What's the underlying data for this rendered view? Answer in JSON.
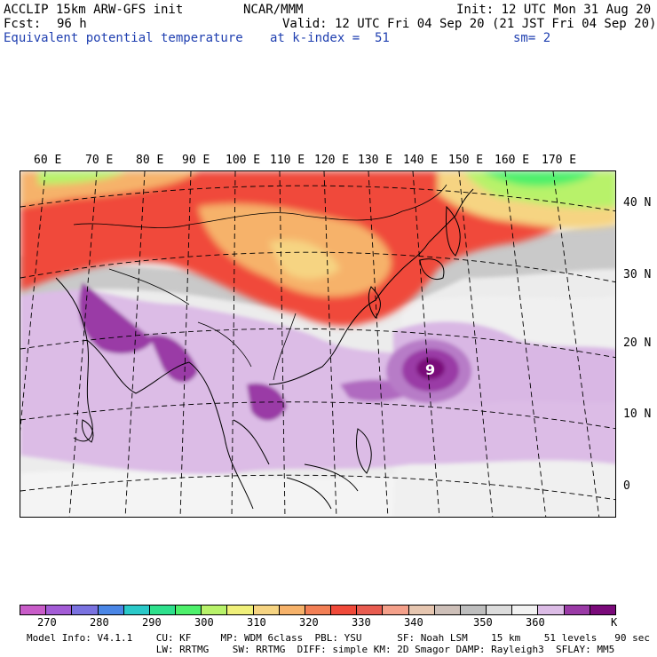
{
  "header": {
    "model": "ACCLIP 15km ARW-GFS init",
    "org": "NCAR/MMM",
    "init": "Init: 12 UTC Mon 31 Aug 20",
    "fcst_label": "Fcst:",
    "fcst_value": "96 h",
    "valid": "Valid: 12 UTC Fri 04 Sep 20 (21 JST Fri 04 Sep 20)",
    "field": "Equivalent potential temperature",
    "level": "at k-index =  51",
    "smoothing": "sm= 2"
  },
  "map": {
    "longitude_labels": [
      "60 E",
      "70 E",
      "80 E",
      "90 E",
      "100 E",
      "110 E",
      "120 E",
      "130 E",
      "140 E",
      "150 E",
      "160 E",
      "170 E"
    ],
    "latitude_labels": [
      "40 N",
      "30 N",
      "20 N",
      "10 N",
      "0"
    ],
    "features": [
      "typhoon-eye",
      "coastlines",
      "country-borders",
      "graticule"
    ]
  },
  "colorbar": {
    "colors": [
      "#c85cc8",
      "#a35cd6",
      "#7a72e0",
      "#4a86e6",
      "#2ac9c9",
      "#2ee08c",
      "#4df06b",
      "#b8f26a",
      "#f0f07a",
      "#f6d482",
      "#f6b26a",
      "#f27f55",
      "#f04a3a",
      "#e85c50",
      "#f4a08a",
      "#e6c6b0",
      "#cdbfb8",
      "#bebebe",
      "#dcdcdc",
      "#f2f2f2",
      "#dcbce6",
      "#9a3aa6",
      "#7a0a7a"
    ],
    "labels": [
      "270",
      "280",
      "290",
      "300",
      "310",
      "320",
      "330",
      "340",
      "350",
      "360"
    ],
    "unit": "K"
  },
  "footer": {
    "line1": "Model Info: V4.1.1    CU: KF     MP: WDM 6class  PBL: YSU      SF: Noah LSM    15 km    51 levels   90 sec",
    "line2": "                      LW: RRTMG    SW: RRTMG  DIFF: simple KM: 2D Smagor DAMP: Rayleigh3  SFLAY: MM5"
  }
}
